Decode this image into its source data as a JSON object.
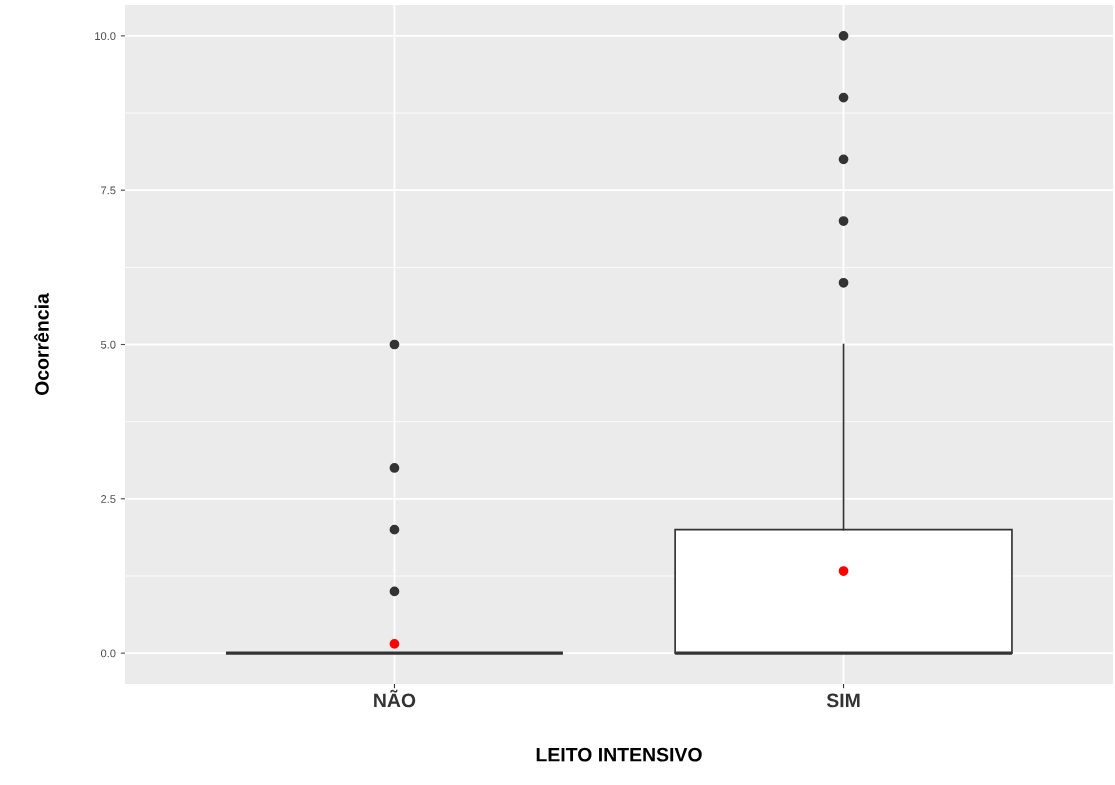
{
  "chart_data": {
    "type": "box",
    "xlabel": "LEITO INTENSIVO",
    "ylabel": "Ocorrência",
    "categories": [
      "NÃO",
      "SIM"
    ],
    "boxes": [
      {
        "low": 0,
        "q1": 0,
        "median": 0,
        "q3": 0,
        "high": 0,
        "mean": 0.15,
        "outliers": [
          1,
          2,
          3,
          5
        ]
      },
      {
        "low": 0,
        "q1": 0,
        "median": 0,
        "q3": 2,
        "high": 5,
        "mean": 1.33,
        "outliers": [
          6,
          7,
          8,
          9,
          10
        ]
      }
    ],
    "ylim": [
      -0.5,
      10.5
    ],
    "yticks": [
      {
        "value": 0,
        "label": "0.0"
      },
      {
        "value": 2.5,
        "label": "2.5"
      },
      {
        "value": 5,
        "label": "5.0"
      },
      {
        "value": 7.5,
        "label": "7.5"
      },
      {
        "value": 10,
        "label": "10.0"
      }
    ],
    "grid": true
  }
}
